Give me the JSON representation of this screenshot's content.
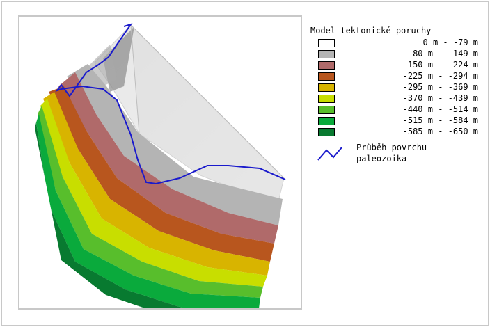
{
  "legend": {
    "title": "Model tektonické poruchy",
    "items": [
      {
        "label": "0 m - -79 m",
        "color": "#ffffff"
      },
      {
        "label": "-80 m - -149 m",
        "color": "#b4b4b4"
      },
      {
        "label": "-150 m - -224 m",
        "color": "#b06a6a"
      },
      {
        "label": "-225 m - -294 m",
        "color": "#b8561e"
      },
      {
        "label": "-295 m - -369 m",
        "color": "#d8b400"
      },
      {
        "label": "-370 m - -439 m",
        "color": "#c8de00"
      },
      {
        "label": "-440 m - -514 m",
        "color": "#58be2c"
      },
      {
        "label": "-515 m - -584 m",
        "color": "#0aaa3c"
      },
      {
        "label": "-585 m - -650 m",
        "color": "#087a30"
      }
    ],
    "line_item": {
      "label_line1": "Průběh povrchu",
      "label_line2": "paleozoika",
      "color": "#1a1acc"
    }
  }
}
